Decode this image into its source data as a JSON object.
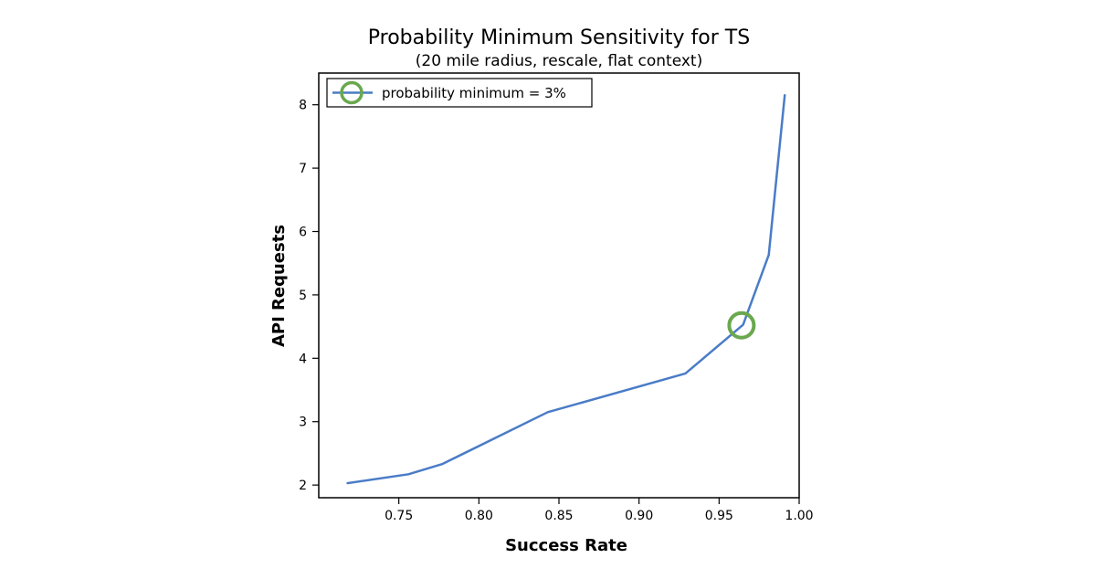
{
  "chart_data": {
    "type": "line",
    "title": "Probability Minimum Sensitivity for TS",
    "subtitle": "(20 mile radius, rescale, flat context)",
    "xlabel": "Success Rate",
    "ylabel": "API Requests",
    "xlim": [
      0.7,
      1.0
    ],
    "ylim": [
      1.8,
      8.5
    ],
    "xticks": [
      0.75,
      0.8,
      0.85,
      0.9,
      0.95,
      1.0
    ],
    "xtick_labels": [
      "0.75",
      "0.80",
      "0.85",
      "0.90",
      "0.95",
      "1.00"
    ],
    "yticks": [
      2,
      3,
      4,
      5,
      6,
      7,
      8
    ],
    "ytick_labels": [
      "2",
      "3",
      "4",
      "5",
      "6",
      "7",
      "8"
    ],
    "grid": false,
    "legend_position": "top-left",
    "series": [
      {
        "name": "probability minimum = 3%",
        "color": "#4a7cc7",
        "x": [
          0.718,
          0.756,
          0.777,
          0.843,
          0.929,
          0.965,
          0.981,
          0.991
        ],
        "y": [
          2.03,
          2.17,
          2.33,
          3.15,
          3.76,
          4.53,
          5.63,
          8.15
        ]
      }
    ],
    "highlight": {
      "label": "probability minimum = 3%",
      "x": 0.964,
      "y": 4.52,
      "color": "#6aa84f"
    }
  }
}
